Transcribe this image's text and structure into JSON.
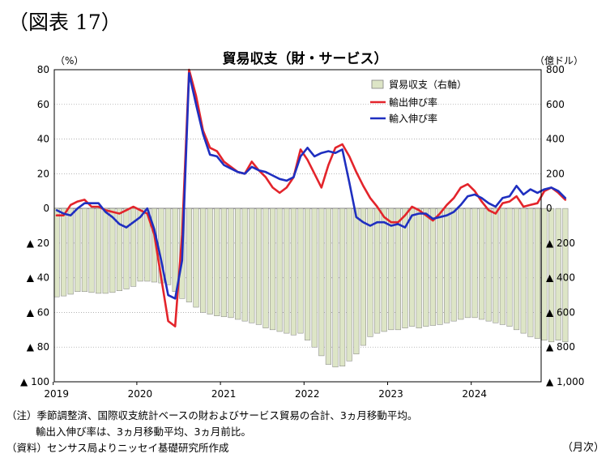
{
  "figure_label": "（図表 17）",
  "axis_units": {
    "left": "（%）",
    "right": "（億ドル）",
    "x": "（月次）"
  },
  "notes": {
    "line1": "（注）季節調整済、国際収支統計ベースの財およびサービス貿易の合計、3ヵ月移動平均。",
    "line2": "輸出入伸び率は、3ヵ月移動平均、3ヵ月前比。",
    "line3": "（資料）センサス局よりニッセイ基礎研究所作成"
  },
  "chart_data": {
    "type": "bar+line",
    "title": "貿易収支（財・サービス）",
    "x_tick_labels": [
      "2019",
      "2020",
      "2021",
      "2022",
      "2023",
      "2024"
    ],
    "x_start": "2019-01",
    "left_axis": {
      "ylim": [
        -100,
        80
      ],
      "ticks": [
        80,
        60,
        40,
        20,
        0,
        -20,
        -40,
        -60,
        -80,
        -100
      ],
      "tick_labels": [
        "80",
        "60",
        "40",
        "20",
        "0",
        "▲ 20",
        "▲ 40",
        "▲ 60",
        "▲ 80",
        "▲ 100"
      ]
    },
    "right_axis": {
      "ylim": [
        -1000,
        800
      ],
      "ticks": [
        800,
        600,
        400,
        200,
        0,
        -200,
        -400,
        -600,
        -800,
        -1000
      ],
      "tick_labels": [
        "800",
        "600",
        "400",
        "200",
        "0",
        "▲ 200",
        "▲ 400",
        "▲ 600",
        "▲ 800",
        "▲ 1,000"
      ]
    },
    "grid": true,
    "legend_position": "top-right",
    "series": [
      {
        "name": "貿易収支（右軸）",
        "type": "bar",
        "axis": "right",
        "color": "#dde5c6",
        "edge": "#808080",
        "values": [
          -510,
          -505,
          -495,
          -480,
          -480,
          -485,
          -490,
          -490,
          -485,
          -475,
          -465,
          -450,
          -420,
          -420,
          -425,
          -430,
          -440,
          -480,
          -520,
          -540,
          -570,
          -600,
          -610,
          -620,
          -625,
          -630,
          -640,
          -650,
          -660,
          -670,
          -690,
          -700,
          -710,
          -720,
          -730,
          -720,
          -760,
          -800,
          -850,
          -900,
          -915,
          -910,
          -880,
          -840,
          -790,
          -740,
          -720,
          -710,
          -700,
          -700,
          -690,
          -680,
          -690,
          -680,
          -675,
          -670,
          -660,
          -650,
          -640,
          -630,
          -630,
          -640,
          -650,
          -660,
          -670,
          -680,
          -700,
          -720,
          -740,
          -750,
          -760,
          -770,
          -760,
          -770
        ]
      },
      {
        "name": "輸出伸び率",
        "type": "line",
        "axis": "left",
        "color": "#e3242b",
        "values": [
          -4,
          -4,
          2,
          4,
          5,
          1,
          1,
          -1,
          -2,
          -3,
          -1,
          1,
          -1,
          -3,
          -15,
          -40,
          -65,
          -68,
          -15,
          80,
          65,
          45,
          35,
          33,
          27,
          24,
          21,
          20,
          27,
          22,
          18,
          12,
          9,
          12,
          18,
          34,
          28,
          20,
          12,
          25,
          35,
          37,
          30,
          21,
          13,
          6,
          1,
          -5,
          -8,
          -8,
          -4,
          1,
          -1,
          -4,
          -7,
          -3,
          2,
          6,
          12,
          14,
          10,
          4,
          -1,
          -3,
          3,
          4,
          7,
          1,
          2,
          3,
          10,
          12,
          9,
          5
        ]
      },
      {
        "name": "輸入伸び率",
        "type": "line",
        "axis": "left",
        "color": "#1f2fc0",
        "values": [
          -1,
          -3,
          -4,
          0,
          3,
          3,
          3,
          -2,
          -5,
          -9,
          -11,
          -8,
          -5,
          0,
          -12,
          -30,
          -50,
          -52,
          -30,
          78,
          60,
          43,
          31,
          30,
          25,
          23,
          21,
          20,
          24,
          22,
          21,
          19,
          17,
          16,
          18,
          30,
          35,
          30,
          32,
          33,
          32,
          34,
          15,
          -5,
          -8,
          -10,
          -8,
          -8,
          -10,
          -9,
          -11,
          -4,
          -3,
          -3,
          -6,
          -5,
          -4,
          -2,
          2,
          7,
          8,
          6,
          3,
          1,
          6,
          7,
          13,
          8,
          11,
          9,
          11,
          12,
          10,
          6
        ]
      }
    ]
  }
}
